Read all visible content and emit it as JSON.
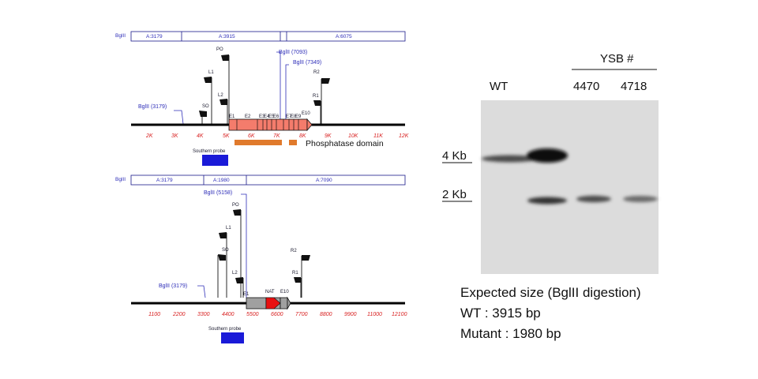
{
  "wt_map": {
    "header": {
      "left": "BglII",
      "segments": [
        "A:3179",
        "A:3915",
        "A:6075"
      ]
    },
    "bglii_sites": [
      "BglII (7093)",
      "BglII (7349)",
      "BglII (3179)"
    ],
    "primers": [
      "PO",
      "L1",
      "L2",
      "SO",
      "R2",
      "R1"
    ],
    "exons": [
      "E1",
      "E2",
      "E3",
      "E4",
      "E5",
      "E6",
      "E7",
      "E8",
      "E9",
      "E10"
    ],
    "ticks": [
      "2K",
      "3K",
      "4K",
      "5K",
      "6K",
      "7K",
      "8K",
      "9K",
      "10K",
      "11K",
      "12K"
    ],
    "domain_label": "Phosphatase domain",
    "probe_label": "Southern probe",
    "colors": {
      "exon_fill": "#f47c6c",
      "domain": "#e07a2c",
      "probe": "#1a1ad8"
    }
  },
  "mut_map": {
    "header": {
      "left": "BglII",
      "segments": [
        "A:3179",
        "A:1980",
        "A:7090"
      ]
    },
    "bglii_sites": [
      "BglII (5158)",
      "BglII (3179)"
    ],
    "primers": [
      "PO",
      "L1",
      "SO",
      "L2",
      "R2",
      "R1"
    ],
    "feature_labels": [
      "E1",
      "NAT",
      "E10"
    ],
    "ticks": [
      "1100",
      "2200",
      "3300",
      "4400",
      "5500",
      "6600",
      "7700",
      "8800",
      "9900",
      "11000",
      "12100"
    ],
    "probe_label": "Southern probe",
    "colors": {
      "cassette_fill": "#a0a0a0",
      "nat_arrow": "#e81010",
      "probe": "#1a1ad8"
    }
  },
  "blot": {
    "group_label": "YSB #",
    "lanes": [
      "WT",
      "4470",
      "4718"
    ],
    "markers": [
      "4 Kb",
      "2 Kb"
    ],
    "caption": {
      "line1": "Expected size (BglII digestion)",
      "line2": "WT : 3915 bp",
      "line3": "Mutant : 1980 bp"
    }
  }
}
